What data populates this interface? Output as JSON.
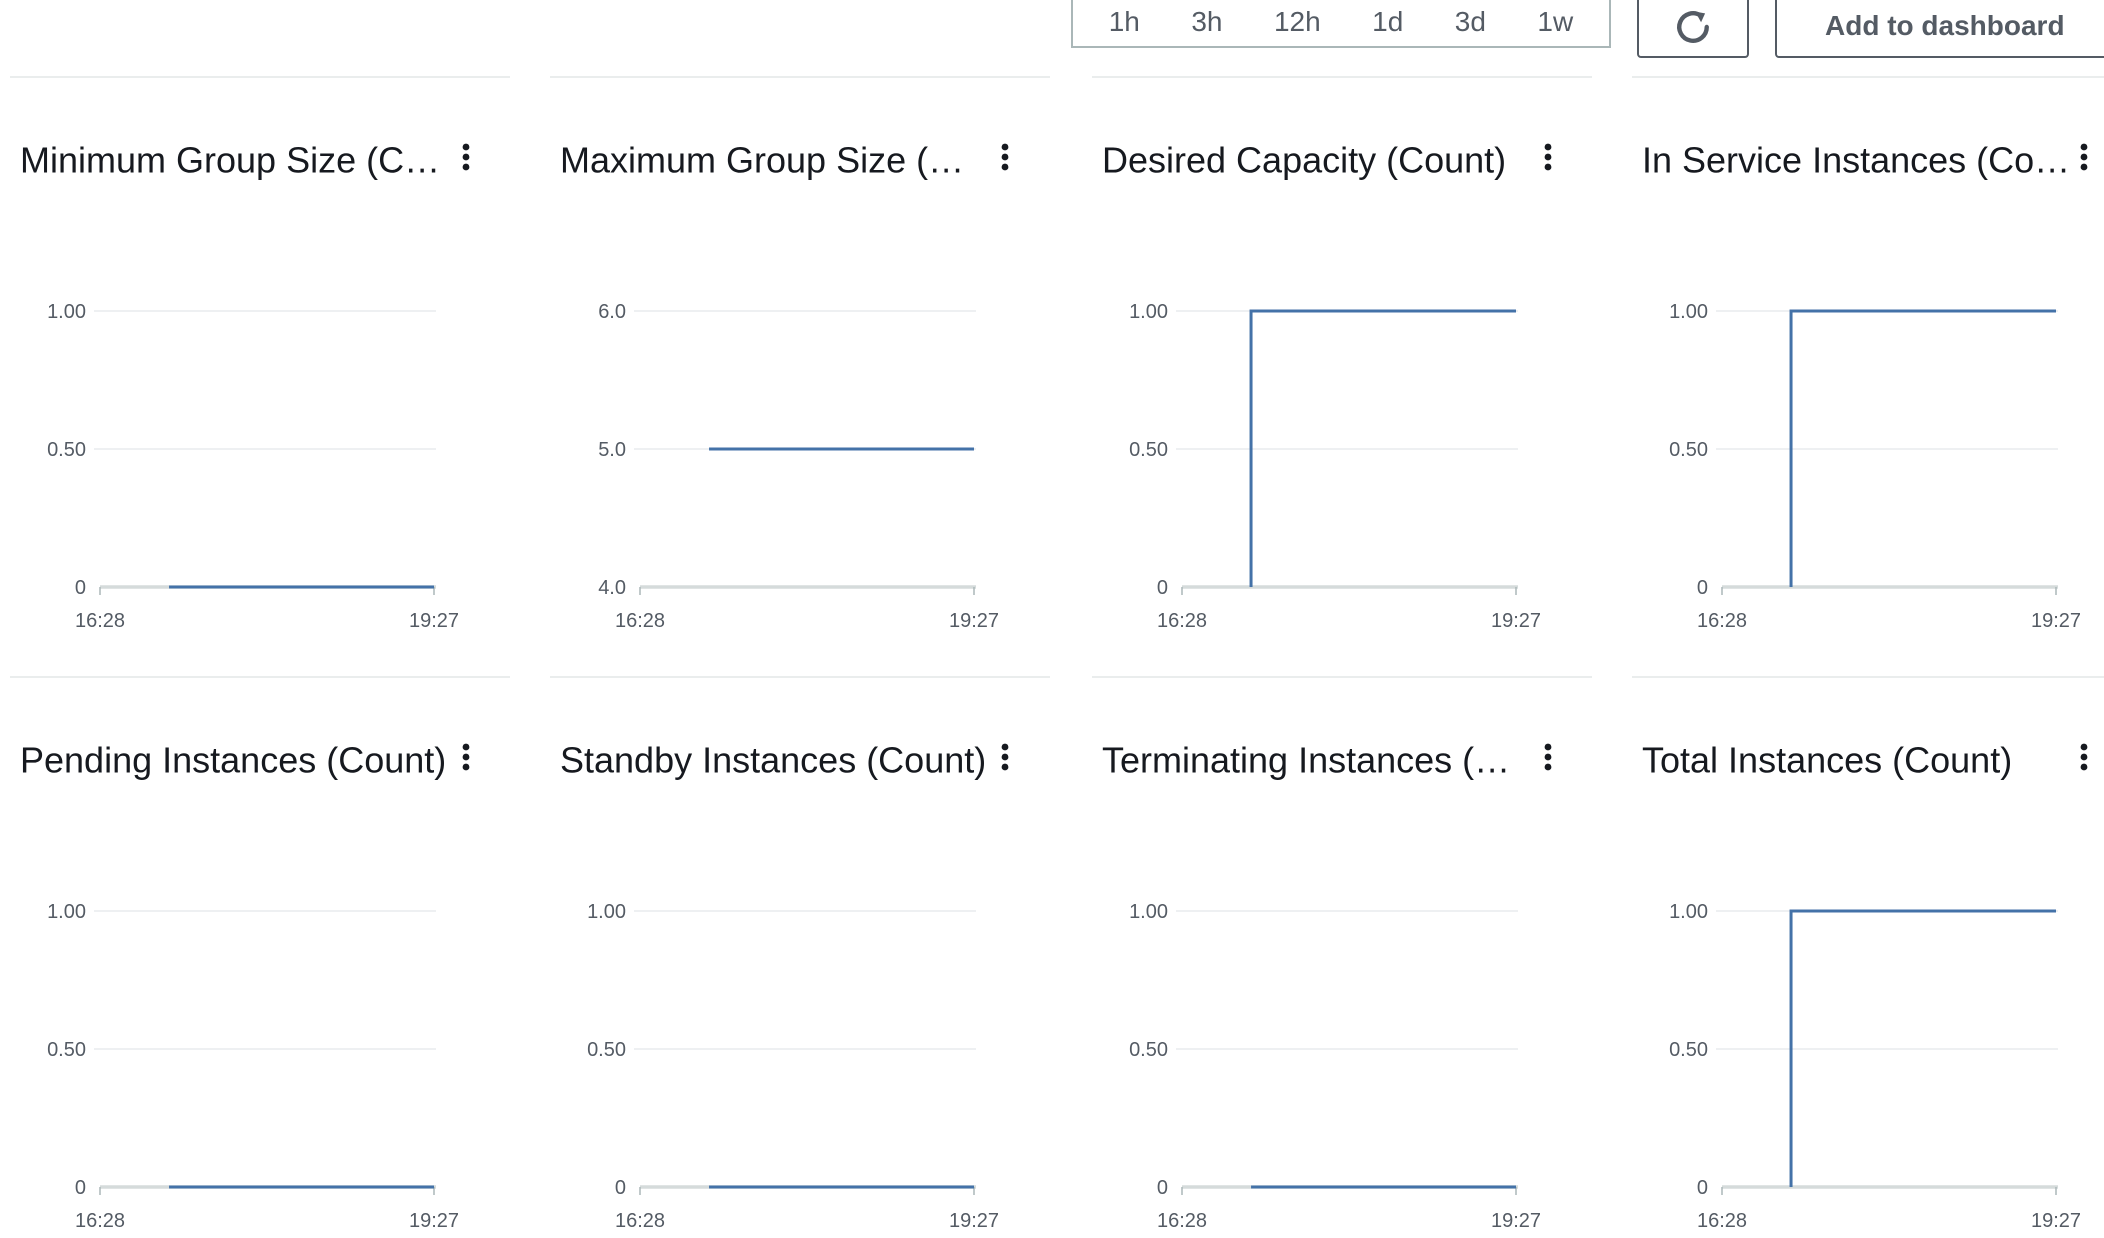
{
  "toolbar": {
    "ranges": [
      "1h",
      "3h",
      "12h",
      "1d",
      "3d",
      "1w"
    ],
    "refresh_icon": "refresh-icon",
    "add_to_dashboard_label": "Add to dashboard",
    "accent_color": "#545b64"
  },
  "series_color": "#4472a8",
  "chart_data": [
    {
      "type": "line",
      "title": "Minimum Group Size (C…",
      "x_ticks": [
        "16:28",
        "19:27"
      ],
      "y_ticks": [
        "0",
        "0.50",
        "1.00"
      ],
      "ylim": [
        0,
        1
      ],
      "series": [
        {
          "values": [
            {
              "x": "17:05",
              "y": 0
            },
            {
              "x": "19:27",
              "y": 0
            }
          ]
        }
      ]
    },
    {
      "type": "line",
      "title": "Maximum Group Size (C…",
      "x_ticks": [
        "16:28",
        "19:27"
      ],
      "y_ticks": [
        "4.0",
        "5.0",
        "6.0"
      ],
      "ylim": [
        4,
        6
      ],
      "series": [
        {
          "values": [
            {
              "x": "17:05",
              "y": 5
            },
            {
              "x": "19:27",
              "y": 5
            }
          ]
        }
      ]
    },
    {
      "type": "line",
      "title": "Desired Capacity (Count)",
      "x_ticks": [
        "16:28",
        "19:27"
      ],
      "y_ticks": [
        "0",
        "0.50",
        "1.00"
      ],
      "ylim": [
        0,
        1
      ],
      "series": [
        {
          "values": [
            {
              "x": "17:05",
              "y": 0
            },
            {
              "x": "17:05",
              "y": 1
            },
            {
              "x": "19:27",
              "y": 1
            }
          ]
        }
      ]
    },
    {
      "type": "line",
      "title": "In Service Instances (Co…",
      "x_ticks": [
        "16:28",
        "19:27"
      ],
      "y_ticks": [
        "0",
        "0.50",
        "1.00"
      ],
      "ylim": [
        0,
        1
      ],
      "series": [
        {
          "values": [
            {
              "x": "17:05",
              "y": 0
            },
            {
              "x": "17:05",
              "y": 1
            },
            {
              "x": "19:27",
              "y": 1
            }
          ]
        }
      ]
    },
    {
      "type": "line",
      "title": "Pending Instances (Count)",
      "x_ticks": [
        "16:28",
        "19:27"
      ],
      "y_ticks": [
        "0",
        "0.50",
        "1.00"
      ],
      "ylim": [
        0,
        1
      ],
      "series": [
        {
          "values": [
            {
              "x": "17:05",
              "y": 0
            },
            {
              "x": "19:27",
              "y": 0
            }
          ]
        }
      ]
    },
    {
      "type": "line",
      "title": "Standby Instances (Count)",
      "x_ticks": [
        "16:28",
        "19:27"
      ],
      "y_ticks": [
        "0",
        "0.50",
        "1.00"
      ],
      "ylim": [
        0,
        1
      ],
      "series": [
        {
          "values": [
            {
              "x": "17:05",
              "y": 0
            },
            {
              "x": "19:27",
              "y": 0
            }
          ]
        }
      ]
    },
    {
      "type": "line",
      "title": "Terminating Instances (…",
      "x_ticks": [
        "16:28",
        "19:27"
      ],
      "y_ticks": [
        "0",
        "0.50",
        "1.00"
      ],
      "ylim": [
        0,
        1
      ],
      "series": [
        {
          "values": [
            {
              "x": "17:05",
              "y": 0
            },
            {
              "x": "19:27",
              "y": 0
            }
          ]
        }
      ]
    },
    {
      "type": "line",
      "title": "Total Instances (Count)",
      "x_ticks": [
        "16:28",
        "19:27"
      ],
      "y_ticks": [
        "0",
        "0.50",
        "1.00"
      ],
      "ylim": [
        0,
        1
      ],
      "series": [
        {
          "values": [
            {
              "x": "17:05",
              "y": 0
            },
            {
              "x": "17:05",
              "y": 1
            },
            {
              "x": "19:27",
              "y": 1
            }
          ]
        }
      ]
    }
  ]
}
